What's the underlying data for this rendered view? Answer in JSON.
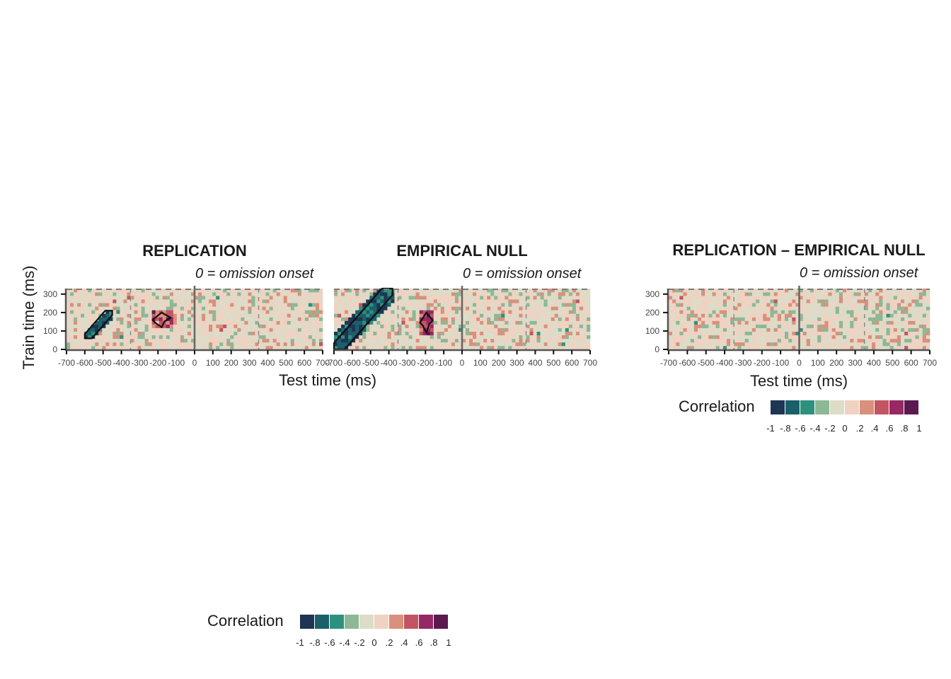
{
  "chart_data": [
    {
      "type": "heatmap",
      "title": "REPLICATION",
      "annotation": "0 = omission onset",
      "x_ticks": [
        "-700",
        "-600",
        "-500",
        "-400",
        "-300",
        "-200",
        "-100",
        "0",
        "100",
        "200",
        "300",
        "400",
        "500",
        "600",
        "700"
      ],
      "y_ticks": [
        "0",
        "100",
        "200",
        "300"
      ],
      "xlim": [
        -700,
        700
      ],
      "ylim": [
        0,
        330
      ],
      "colorbar_range": [
        -1,
        1
      ],
      "clusters": [
        {
          "sign": "negative",
          "approx_x": [
            -600,
            -450
          ],
          "approx_y": [
            60,
            210
          ]
        },
        {
          "sign": "positive",
          "approx_x": [
            -230,
            -130
          ],
          "approx_y": [
            120,
            200
          ]
        }
      ]
    },
    {
      "type": "heatmap",
      "title": "EMPIRICAL NULL",
      "annotation": "0 = omission onset",
      "x_ticks": [
        "-700",
        "-600",
        "-500",
        "-400",
        "-300",
        "-200",
        "-100",
        "0",
        "100",
        "200",
        "300",
        "400",
        "500",
        "600",
        "700"
      ],
      "y_ticks": [],
      "xlim": [
        -700,
        700
      ],
      "ylim": [
        0,
        330
      ],
      "colorbar_range": [
        -1,
        1
      ],
      "clusters": [
        {
          "sign": "negative",
          "approx_x": [
            -700,
            -380
          ],
          "approx_y": [
            0,
            330
          ]
        },
        {
          "sign": "positive",
          "approx_x": [
            -230,
            -160
          ],
          "approx_y": [
            90,
            200
          ]
        }
      ]
    },
    {
      "type": "heatmap",
      "title": "REPLICATION – EMPIRICAL NULL",
      "annotation": "0 = omission onset",
      "x_ticks": [
        "-700",
        "-600",
        "-500",
        "-400",
        "-300",
        "-200",
        "-100",
        "0",
        "100",
        "200",
        "300",
        "400",
        "500",
        "600",
        "700"
      ],
      "y_ticks": [
        "0",
        "100",
        "200",
        "300"
      ],
      "xlim": [
        -700,
        700
      ],
      "ylim": [
        0,
        330
      ],
      "colorbar_range": [
        -1,
        1
      ],
      "clusters": []
    }
  ],
  "shared_labels": {
    "ylabel": "Train time (ms)",
    "xlabel_left": "Test time (ms)",
    "xlabel_right": "Test time (ms)"
  },
  "colorbar": {
    "label": "Correlation",
    "tick_labels": [
      "-1",
      "-.8",
      "-.6",
      "-.4",
      "-.2",
      "0",
      ".2",
      ".4",
      ".6",
      ".8",
      "1"
    ],
    "colors": [
      "#1e3553",
      "#1b5f6b",
      "#2e917e",
      "#8cb896",
      "#dcdcc8",
      "#efd2c2",
      "#d9907c",
      "#c25561",
      "#972864",
      "#5a1a50"
    ]
  }
}
